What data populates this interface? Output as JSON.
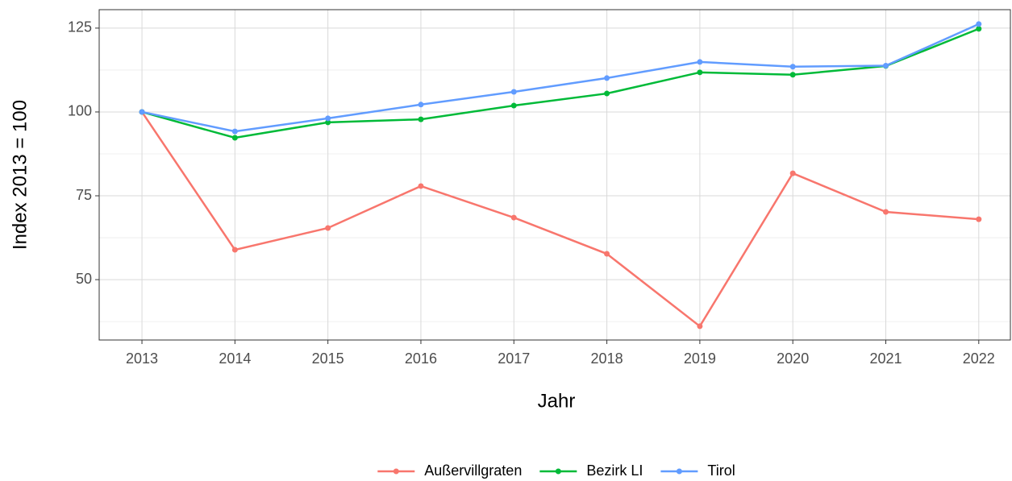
{
  "chart_data": {
    "type": "line",
    "x": [
      2013,
      2014,
      2015,
      2016,
      2017,
      2018,
      2019,
      2020,
      2021,
      2022
    ],
    "series": [
      {
        "name": "Außervillgraten",
        "color": "#F8766D",
        "values": [
          100,
          58.9,
          65.4,
          77.9,
          68.5,
          57.7,
          36.1,
          81.7,
          70.2,
          68.0
        ]
      },
      {
        "name": "Bezirk LI",
        "color": "#00BA38",
        "values": [
          100,
          92.3,
          96.9,
          97.8,
          101.9,
          105.5,
          111.8,
          111.1,
          113.7,
          124.8
        ]
      },
      {
        "name": "Tirol",
        "color": "#619CFF",
        "values": [
          100,
          94.2,
          98.1,
          102.2,
          106.0,
          110.1,
          114.9,
          113.5,
          113.8,
          126.2
        ]
      }
    ],
    "x_label": "Jahr",
    "y_label": "Index  2013  = 100",
    "xlim": [
      2012.54,
      2022.34
    ],
    "xticks": [
      2013,
      2014,
      2015,
      2016,
      2017,
      2018,
      2019,
      2020,
      2021,
      2022
    ],
    "ylim": [
      32,
      130.5
    ],
    "yticks": [
      50,
      75,
      100,
      125
    ],
    "y_minor_ticks": [
      37.5,
      62.5,
      87.5,
      112.5
    ],
    "grid": true,
    "legend": "bottom"
  }
}
